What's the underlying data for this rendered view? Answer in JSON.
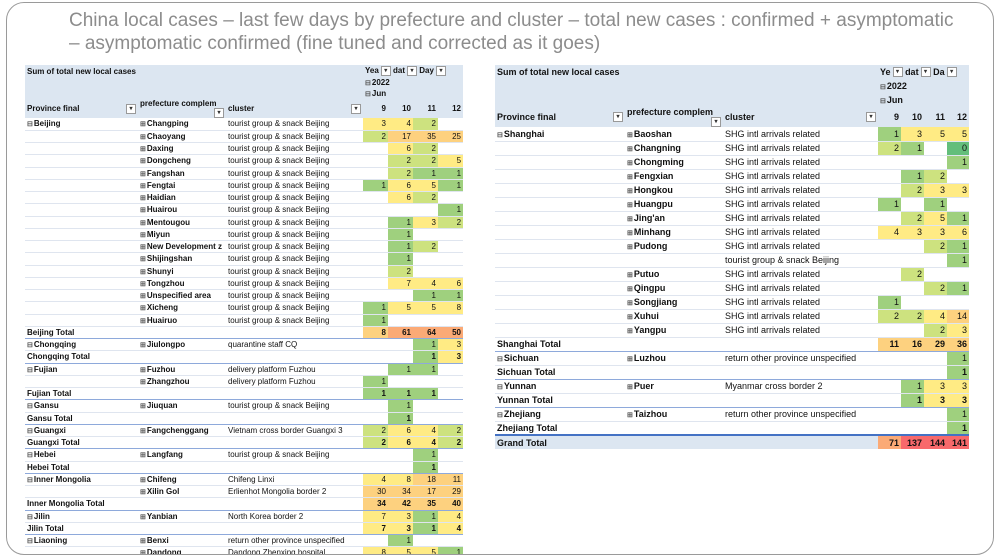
{
  "title": "China local cases – last few days by prefecture and cluster – total new cases : confirmed + asymptomatic – asymptomatic confirmed (fine tuned and corrected as it goes)",
  "heat_colors": [
    "#63be7b",
    "#9fd07e",
    "#cde27f",
    "#ffeb84",
    "#fdd17f",
    "#fbaa76",
    "#f8696b"
  ],
  "left": {
    "title": "Sum of total new local cases",
    "year_hdr": "Yea",
    "date_hdr": "dat",
    "day_hdr": "Day",
    "year": "2022",
    "month": "Jun",
    "col_province": "Province final",
    "col_prefecture": "prefecture complem",
    "col_cluster": "cluster",
    "days": [
      "9",
      "10",
      "11",
      "12"
    ],
    "rows": [
      {
        "t": "d",
        "prov": "Beijing",
        "pref": "Changping",
        "cluster": "tourist group & snack Beijing",
        "v": [
          "3",
          "4",
          "2",
          ""
        ],
        "c": [
          "#ffeb84",
          "#ffeb84",
          "#cde27f",
          ""
        ]
      },
      {
        "t": "d",
        "prov": "",
        "pref": "Chaoyang",
        "cluster": "tourist group & snack Beijing",
        "v": [
          "2",
          "17",
          "35",
          "25"
        ],
        "c": [
          "#cde27f",
          "#fdd17f",
          "#fdd17f",
          "#fdd17f"
        ]
      },
      {
        "t": "d",
        "prov": "",
        "pref": "Daxing",
        "cluster": "tourist group & snack Beijing",
        "v": [
          "",
          "6",
          "2",
          ""
        ],
        "c": [
          "",
          "#ffeb84",
          "#cde27f",
          ""
        ]
      },
      {
        "t": "d",
        "prov": "",
        "pref": "Dongcheng",
        "cluster": "tourist group & snack Beijing",
        "v": [
          "",
          "2",
          "2",
          "5"
        ],
        "c": [
          "",
          "#cde27f",
          "#cde27f",
          "#ffeb84"
        ]
      },
      {
        "t": "d",
        "prov": "",
        "pref": "Fangshan",
        "cluster": "tourist group & snack Beijing",
        "v": [
          "",
          "2",
          "1",
          "1"
        ],
        "c": [
          "",
          "#cde27f",
          "#9fd07e",
          "#9fd07e"
        ]
      },
      {
        "t": "d",
        "prov": "",
        "pref": "Fengtai",
        "cluster": "tourist group & snack Beijing",
        "v": [
          "1",
          "6",
          "5",
          "1"
        ],
        "c": [
          "#9fd07e",
          "#ffeb84",
          "#ffeb84",
          "#9fd07e"
        ]
      },
      {
        "t": "d",
        "prov": "",
        "pref": "Haidian",
        "cluster": "tourist group & snack Beijing",
        "v": [
          "",
          "6",
          "2",
          ""
        ],
        "c": [
          "",
          "#ffeb84",
          "#cde27f",
          ""
        ]
      },
      {
        "t": "d",
        "prov": "",
        "pref": "Huairou",
        "cluster": "tourist group & snack Beijing",
        "v": [
          "",
          "",
          "",
          "1"
        ],
        "c": [
          "",
          "",
          "",
          "#9fd07e"
        ]
      },
      {
        "t": "d",
        "prov": "",
        "pref": "Mentougou",
        "cluster": "tourist group & snack Beijing",
        "v": [
          "",
          "1",
          "3",
          "2"
        ],
        "c": [
          "",
          "#9fd07e",
          "#ffeb84",
          "#cde27f"
        ]
      },
      {
        "t": "d",
        "prov": "",
        "pref": "Miyun",
        "cluster": "tourist group & snack Beijing",
        "v": [
          "",
          "1",
          "",
          ""
        ],
        "c": [
          "",
          "#9fd07e",
          "",
          ""
        ]
      },
      {
        "t": "d",
        "prov": "",
        "pref": "New Development z",
        "cluster": "tourist group & snack Beijing",
        "v": [
          "",
          "1",
          "2",
          ""
        ],
        "c": [
          "",
          "#9fd07e",
          "#cde27f",
          ""
        ]
      },
      {
        "t": "d",
        "prov": "",
        "pref": "Shijingshan",
        "cluster": "tourist group & snack Beijing",
        "v": [
          "",
          "1",
          "",
          ""
        ],
        "c": [
          "",
          "#9fd07e",
          "",
          ""
        ]
      },
      {
        "t": "d",
        "prov": "",
        "pref": "Shunyi",
        "cluster": "tourist group & snack Beijing",
        "v": [
          "",
          "2",
          "",
          ""
        ],
        "c": [
          "",
          "#cde27f",
          "",
          ""
        ]
      },
      {
        "t": "d",
        "prov": "",
        "pref": "Tongzhou",
        "cluster": "tourist group & snack Beijing",
        "v": [
          "",
          "7",
          "4",
          "6"
        ],
        "c": [
          "",
          "#ffeb84",
          "#ffeb84",
          "#ffeb84"
        ]
      },
      {
        "t": "d",
        "prov": "",
        "pref": "Unspecified area",
        "cluster": "tourist group & snack Beijing",
        "v": [
          "",
          "",
          "1",
          "1"
        ],
        "c": [
          "",
          "",
          "#9fd07e",
          "#9fd07e"
        ]
      },
      {
        "t": "d",
        "prov": "",
        "pref": "Xicheng",
        "cluster": "tourist group & snack Beijing",
        "v": [
          "1",
          "5",
          "5",
          "8"
        ],
        "c": [
          "#9fd07e",
          "#ffeb84",
          "#ffeb84",
          "#ffeb84"
        ]
      },
      {
        "t": "d",
        "prov": "",
        "pref": "Huairuo",
        "cluster": "tourist group & snack Beijing",
        "v": [
          "1",
          "",
          "",
          ""
        ],
        "c": [
          "#9fd07e",
          "",
          "",
          ""
        ]
      },
      {
        "t": "t",
        "prov": "Beijing Total",
        "pref": "",
        "cluster": "",
        "v": [
          "8",
          "61",
          "64",
          "50"
        ],
        "c": [
          "#fdd17f",
          "#fbaa76",
          "#fbaa76",
          "#fbaa76"
        ]
      },
      {
        "t": "d",
        "prov": "Chongqing",
        "pref": "Jiulongpo",
        "cluster": "quarantine staff CQ",
        "v": [
          "",
          "",
          "1",
          "3"
        ],
        "c": [
          "",
          "",
          "#9fd07e",
          "#ffeb84"
        ]
      },
      {
        "t": "t",
        "prov": "Chongqing Total",
        "pref": "",
        "cluster": "",
        "v": [
          "",
          "",
          "1",
          "3"
        ],
        "c": [
          "",
          "",
          "#9fd07e",
          "#ffeb84"
        ]
      },
      {
        "t": "d",
        "prov": "Fujian",
        "pref": "Fuzhou",
        "cluster": "delivery platform Fuzhou",
        "v": [
          "",
          "1",
          "1",
          ""
        ],
        "c": [
          "",
          "#9fd07e",
          "#9fd07e",
          ""
        ]
      },
      {
        "t": "d",
        "prov": "",
        "pref": "Zhangzhou",
        "cluster": "delivery platform Fuzhou",
        "v": [
          "1",
          "",
          "",
          ""
        ],
        "c": [
          "#9fd07e",
          "",
          "",
          ""
        ]
      },
      {
        "t": "t",
        "prov": "Fujian Total",
        "pref": "",
        "cluster": "",
        "v": [
          "1",
          "1",
          "1",
          ""
        ],
        "c": [
          "#9fd07e",
          "#9fd07e",
          "#9fd07e",
          ""
        ]
      },
      {
        "t": "d",
        "prov": "Gansu",
        "pref": "Jiuquan",
        "cluster": "tourist group & snack Beijing",
        "v": [
          "",
          "1",
          "",
          ""
        ],
        "c": [
          "",
          "#9fd07e",
          "",
          ""
        ]
      },
      {
        "t": "t",
        "prov": "Gansu Total",
        "pref": "",
        "cluster": "",
        "v": [
          "",
          "1",
          "",
          ""
        ],
        "c": [
          "",
          "#9fd07e",
          "",
          ""
        ]
      },
      {
        "t": "d",
        "prov": "Guangxi",
        "pref": "Fangchenggang",
        "cluster": "Vietnam cross border Guangxi 3",
        "v": [
          "2",
          "6",
          "4",
          "2"
        ],
        "c": [
          "#cde27f",
          "#ffeb84",
          "#ffeb84",
          "#cde27f"
        ]
      },
      {
        "t": "t",
        "prov": "Guangxi Total",
        "pref": "",
        "cluster": "",
        "v": [
          "2",
          "6",
          "4",
          "2"
        ],
        "c": [
          "#cde27f",
          "#ffeb84",
          "#ffeb84",
          "#cde27f"
        ]
      },
      {
        "t": "d",
        "prov": "Hebei",
        "pref": "Langfang",
        "cluster": "tourist group & snack Beijing",
        "v": [
          "",
          "",
          "1",
          ""
        ],
        "c": [
          "",
          "",
          "#9fd07e",
          ""
        ]
      },
      {
        "t": "t",
        "prov": "Hebei Total",
        "pref": "",
        "cluster": "",
        "v": [
          "",
          "",
          "1",
          ""
        ],
        "c": [
          "",
          "",
          "#9fd07e",
          ""
        ]
      },
      {
        "t": "d",
        "prov": "Inner Mongolia",
        "pref": "Chifeng",
        "cluster": "Chifeng Linxi",
        "v": [
          "4",
          "8",
          "18",
          "11"
        ],
        "c": [
          "#ffeb84",
          "#ffeb84",
          "#fdd17f",
          "#fdd17f"
        ]
      },
      {
        "t": "d",
        "prov": "",
        "pref": "Xilin Gol",
        "cluster": "Erlienhot Mongolia border 2",
        "v": [
          "30",
          "34",
          "17",
          "29"
        ],
        "c": [
          "#fdd17f",
          "#fdd17f",
          "#fdd17f",
          "#fdd17f"
        ]
      },
      {
        "t": "t",
        "prov": "Inner Mongolia Total",
        "pref": "",
        "cluster": "",
        "v": [
          "34",
          "42",
          "35",
          "40"
        ],
        "c": [
          "#fdd17f",
          "#fdd17f",
          "#fdd17f",
          "#fdd17f"
        ]
      },
      {
        "t": "d",
        "prov": "Jilin",
        "pref": "Yanbian",
        "cluster": "North Korea border 2",
        "v": [
          "7",
          "3",
          "1",
          "4"
        ],
        "c": [
          "#ffeb84",
          "#ffeb84",
          "#9fd07e",
          "#ffeb84"
        ]
      },
      {
        "t": "t",
        "prov": "Jilin Total",
        "pref": "",
        "cluster": "",
        "v": [
          "7",
          "3",
          "1",
          "4"
        ],
        "c": [
          "#ffeb84",
          "#ffeb84",
          "#9fd07e",
          "#ffeb84"
        ]
      },
      {
        "t": "d",
        "prov": "Liaoning",
        "pref": "Benxi",
        "cluster": "return other province unspecified",
        "v": [
          "",
          "1",
          "",
          ""
        ],
        "c": [
          "",
          "#9fd07e",
          "",
          ""
        ]
      },
      {
        "t": "d",
        "prov": "",
        "pref": "Dandong",
        "cluster": "Dandong Zhenxing hospital",
        "v": [
          "8",
          "5",
          "5",
          "1"
        ],
        "c": [
          "#ffeb84",
          "#ffeb84",
          "#ffeb84",
          "#9fd07e"
        ]
      }
    ]
  },
  "right": {
    "title": "Sum of total new local cases",
    "year_hdr": "Ye",
    "date_hdr": "dat",
    "day_hdr": "Da",
    "year": "2022",
    "month": "Jun",
    "col_province": "Province final",
    "col_prefecture": "prefecture complem",
    "col_cluster": "cluster",
    "days": [
      "9",
      "10",
      "11",
      "12"
    ],
    "rows": [
      {
        "t": "d",
        "prov": "Shanghai",
        "pref": "Baoshan",
        "cluster": "SHG intl arrivals related",
        "v": [
          "1",
          "3",
          "5",
          "5"
        ],
        "c": [
          "#9fd07e",
          "#ffeb84",
          "#ffeb84",
          "#ffeb84"
        ]
      },
      {
        "t": "d",
        "prov": "",
        "pref": "Changning",
        "cluster": "SHG intl arrivals related",
        "v": [
          "2",
          "1",
          "",
          "0"
        ],
        "c": [
          "#cde27f",
          "#9fd07e",
          "",
          "#63be7b"
        ]
      },
      {
        "t": "d",
        "prov": "",
        "pref": "Chongming",
        "cluster": "SHG intl arrivals related",
        "v": [
          "",
          "",
          "",
          "1"
        ],
        "c": [
          "",
          "",
          "",
          "#9fd07e"
        ]
      },
      {
        "t": "d",
        "prov": "",
        "pref": "Fengxian",
        "cluster": "SHG intl arrivals related",
        "v": [
          "",
          "1",
          "2",
          ""
        ],
        "c": [
          "",
          "#9fd07e",
          "#cde27f",
          ""
        ]
      },
      {
        "t": "d",
        "prov": "",
        "pref": "Hongkou",
        "cluster": "SHG intl arrivals related",
        "v": [
          "",
          "2",
          "3",
          "3"
        ],
        "c": [
          "",
          "#cde27f",
          "#ffeb84",
          "#ffeb84"
        ]
      },
      {
        "t": "d",
        "prov": "",
        "pref": "Huangpu",
        "cluster": "SHG intl arrivals related",
        "v": [
          "1",
          "",
          "1",
          ""
        ],
        "c": [
          "#9fd07e",
          "",
          "#9fd07e",
          ""
        ]
      },
      {
        "t": "d",
        "prov": "",
        "pref": "Jing'an",
        "cluster": "SHG intl arrivals related",
        "v": [
          "",
          "2",
          "5",
          "1"
        ],
        "c": [
          "",
          "#cde27f",
          "#ffeb84",
          "#9fd07e"
        ]
      },
      {
        "t": "d",
        "prov": "",
        "pref": "Minhang",
        "cluster": "SHG intl arrivals related",
        "v": [
          "4",
          "3",
          "3",
          "6"
        ],
        "c": [
          "#ffeb84",
          "#ffeb84",
          "#ffeb84",
          "#ffeb84"
        ]
      },
      {
        "t": "d",
        "prov": "",
        "pref": "Pudong",
        "cluster": "SHG intl arrivals related",
        "v": [
          "",
          "",
          "2",
          "1"
        ],
        "c": [
          "",
          "",
          "#cde27f",
          "#9fd07e"
        ]
      },
      {
        "t": "d",
        "prov": "",
        "pref": "",
        "cluster": "tourist group & snack Beijing",
        "v": [
          "",
          "",
          "",
          "1"
        ],
        "c": [
          "",
          "",
          "",
          "#9fd07e"
        ]
      },
      {
        "t": "d",
        "prov": "",
        "pref": "Putuo",
        "cluster": "SHG intl arrivals related",
        "v": [
          "",
          "2",
          "",
          ""
        ],
        "c": [
          "",
          "#cde27f",
          "",
          ""
        ]
      },
      {
        "t": "d",
        "prov": "",
        "pref": "Qingpu",
        "cluster": "SHG intl arrivals related",
        "v": [
          "",
          "",
          "2",
          "1"
        ],
        "c": [
          "",
          "",
          "#cde27f",
          "#9fd07e"
        ]
      },
      {
        "t": "d",
        "prov": "",
        "pref": "Songjiang",
        "cluster": "SHG intl arrivals related",
        "v": [
          "1",
          "",
          "",
          ""
        ],
        "c": [
          "#9fd07e",
          "",
          "",
          ""
        ]
      },
      {
        "t": "d",
        "prov": "",
        "pref": "Xuhui",
        "cluster": "SHG intl arrivals related",
        "v": [
          "2",
          "2",
          "4",
          "14"
        ],
        "c": [
          "#cde27f",
          "#cde27f",
          "#ffeb84",
          "#fdd17f"
        ]
      },
      {
        "t": "d",
        "prov": "",
        "pref": "Yangpu",
        "cluster": "SHG intl arrivals related",
        "v": [
          "",
          "",
          "2",
          "3"
        ],
        "c": [
          "",
          "",
          "#cde27f",
          "#ffeb84"
        ]
      },
      {
        "t": "t",
        "prov": "Shanghai Total",
        "pref": "",
        "cluster": "",
        "v": [
          "11",
          "16",
          "29",
          "36"
        ],
        "c": [
          "#fdd17f",
          "#fdd17f",
          "#fdd17f",
          "#fdd17f"
        ]
      },
      {
        "t": "d",
        "prov": "Sichuan",
        "pref": "Luzhou",
        "cluster": "return other province unspecified",
        "v": [
          "",
          "",
          "",
          "1"
        ],
        "c": [
          "",
          "",
          "",
          "#9fd07e"
        ]
      },
      {
        "t": "t",
        "prov": "Sichuan Total",
        "pref": "",
        "cluster": "",
        "v": [
          "",
          "",
          "",
          "1"
        ],
        "c": [
          "",
          "",
          "",
          "#9fd07e"
        ]
      },
      {
        "t": "d",
        "prov": "Yunnan",
        "pref": "Puer",
        "cluster": "Myanmar cross border 2",
        "v": [
          "",
          "1",
          "3",
          "3"
        ],
        "c": [
          "",
          "#9fd07e",
          "#ffeb84",
          "#ffeb84"
        ]
      },
      {
        "t": "t",
        "prov": "Yunnan Total",
        "pref": "",
        "cluster": "",
        "v": [
          "",
          "1",
          "3",
          "3"
        ],
        "c": [
          "",
          "#9fd07e",
          "#ffeb84",
          "#ffeb84"
        ]
      },
      {
        "t": "d",
        "prov": "Zhejiang",
        "pref": "Taizhou",
        "cluster": "return other province unspecified",
        "v": [
          "",
          "",
          "",
          "1"
        ],
        "c": [
          "",
          "",
          "",
          "#9fd07e"
        ]
      },
      {
        "t": "t",
        "prov": "Zhejiang Total",
        "pref": "",
        "cluster": "",
        "v": [
          "",
          "",
          "",
          "1"
        ],
        "c": [
          "",
          "",
          "",
          "#9fd07e"
        ]
      },
      {
        "t": "g",
        "prov": "Grand Total",
        "pref": "",
        "cluster": "",
        "v": [
          "71",
          "137",
          "144",
          "141"
        ],
        "c": [
          "#fbaa76",
          "#f8696b",
          "#f8696b",
          "#f8696b"
        ]
      }
    ]
  }
}
